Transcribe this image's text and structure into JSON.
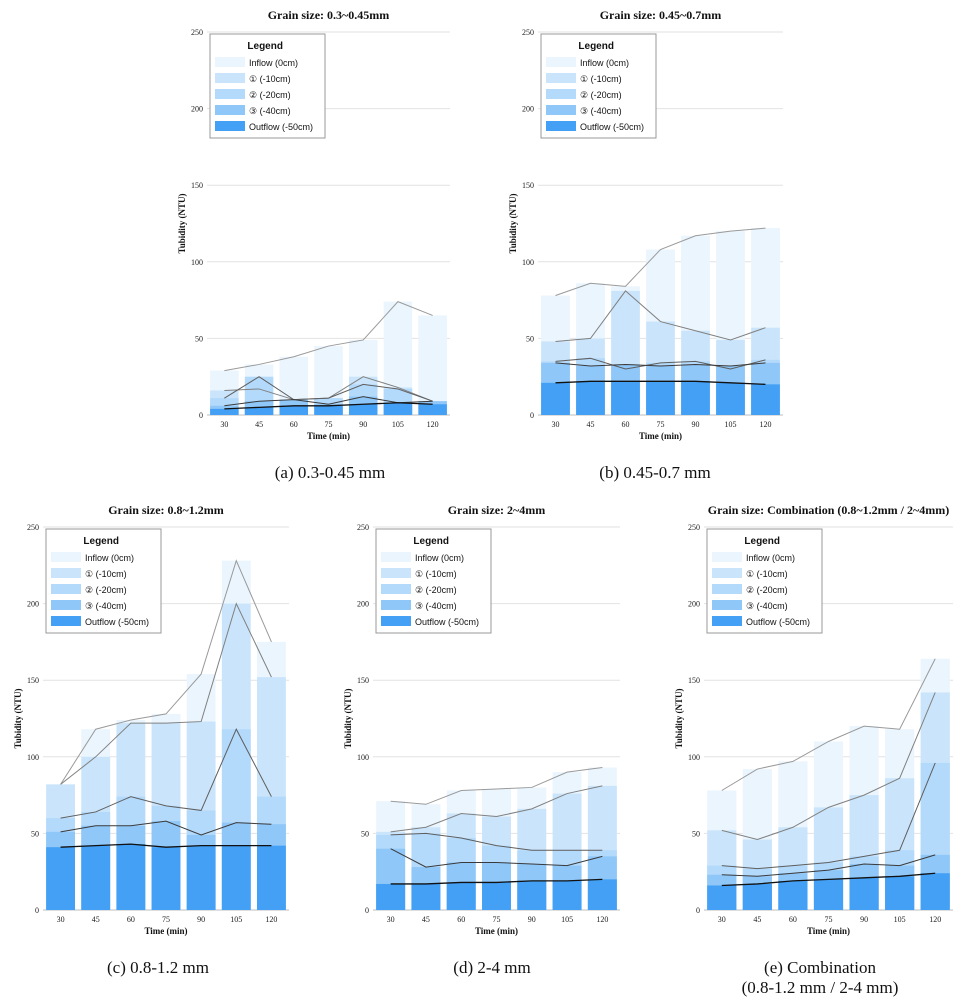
{
  "figure": {
    "colors": {
      "series": [
        "#eaf5fe",
        "#cae5fb",
        "#b3d9fb",
        "#8fc7f8",
        "#43a0f5"
      ],
      "lines": [
        "#9a9a9a",
        "#808080",
        "#5e5e5e",
        "#3a3a3a",
        "#111111"
      ]
    },
    "legend_title": "Legend",
    "series_names": [
      "Inflow (0cm)",
      "① (-10cm)",
      "② (-20cm)",
      "③ (-40cm)",
      "Outflow (-50cm)"
    ]
  },
  "chart_data": [
    {
      "type": "bar",
      "title": "Grain size: 0.3~0.45mm",
      "caption": [
        "(a) 0.3-0.45 mm"
      ],
      "xlabel": "Time (min)",
      "ylabel": "Tubidity (NTU)",
      "ylim": [
        0,
        250
      ],
      "yticks": [
        0,
        50,
        100,
        150,
        200,
        250
      ],
      "categories": [
        "30",
        "45",
        "60",
        "75",
        "90",
        "105",
        "120"
      ],
      "series": [
        {
          "name": "Inflow (0cm)",
          "values": [
            29,
            33,
            38,
            45,
            49,
            74,
            65
          ]
        },
        {
          "name": "① (-10cm)",
          "values": [
            16,
            17,
            10,
            11,
            25,
            18,
            9
          ]
        },
        {
          "name": "② (-20cm)",
          "values": [
            11,
            25,
            10,
            11,
            20,
            17,
            9
          ]
        },
        {
          "name": "③ (-40cm)",
          "values": [
            6,
            9,
            10,
            7,
            12,
            8,
            9
          ]
        },
        {
          "name": "Outflow (-50cm)",
          "values": [
            4,
            5,
            6,
            6,
            7,
            8,
            7
          ]
        }
      ]
    },
    {
      "type": "bar",
      "title": "Grain size: 0.45~0.7mm",
      "caption": [
        "(b) 0.45-0.7 mm"
      ],
      "xlabel": "Time (min)",
      "ylabel": "Tubidity (NTU)",
      "ylim": [
        0,
        250
      ],
      "yticks": [
        0,
        50,
        100,
        150,
        200,
        250
      ],
      "categories": [
        "30",
        "45",
        "60",
        "75",
        "90",
        "105",
        "120"
      ],
      "series": [
        {
          "name": "Inflow (0cm)",
          "values": [
            78,
            86,
            84,
            108,
            117,
            120,
            122
          ]
        },
        {
          "name": "① (-10cm)",
          "values": [
            48,
            50,
            81,
            61,
            55,
            49,
            57
          ]
        },
        {
          "name": "② (-20cm)",
          "values": [
            35,
            37,
            30,
            34,
            35,
            30,
            36
          ]
        },
        {
          "name": "③ (-40cm)",
          "values": [
            34,
            32,
            33,
            32,
            33,
            32,
            34
          ]
        },
        {
          "name": "Outflow (-50cm)",
          "values": [
            21,
            22,
            22,
            22,
            22,
            21,
            20
          ]
        }
      ]
    },
    {
      "type": "bar",
      "title": "Grain size: 0.8~1.2mm",
      "caption": [
        "(c) 0.8-1.2 mm"
      ],
      "xlabel": "Time (min)",
      "ylabel": "Tubidity (NTU)",
      "ylim": [
        0,
        250
      ],
      "yticks": [
        0,
        50,
        100,
        150,
        200,
        250
      ],
      "categories": [
        "30",
        "45",
        "60",
        "75",
        "90",
        "105",
        "120"
      ],
      "series": [
        {
          "name": "Inflow (0cm)",
          "values": [
            82,
            118,
            124,
            128,
            154,
            228,
            175
          ]
        },
        {
          "name": "① (-10cm)",
          "values": [
            82,
            100,
            122,
            122,
            123,
            200,
            152
          ]
        },
        {
          "name": "② (-20cm)",
          "values": [
            60,
            64,
            74,
            68,
            65,
            118,
            74
          ]
        },
        {
          "name": "③ (-40cm)",
          "values": [
            51,
            55,
            55,
            58,
            49,
            57,
            56
          ]
        },
        {
          "name": "Outflow (-50cm)",
          "values": [
            41,
            42,
            43,
            41,
            42,
            42,
            42
          ]
        }
      ]
    },
    {
      "type": "bar",
      "title": "Grain size: 2~4mm",
      "caption": [
        "(d) 2-4 mm"
      ],
      "xlabel": "Time (min)",
      "ylabel": "Tubidity (NTU)",
      "ylim": [
        0,
        250
      ],
      "yticks": [
        0,
        50,
        100,
        150,
        200,
        250
      ],
      "categories": [
        "30",
        "45",
        "60",
        "75",
        "90",
        "105",
        "120"
      ],
      "series": [
        {
          "name": "Inflow (0cm)",
          "values": [
            71,
            69,
            78,
            79,
            80,
            90,
            93
          ]
        },
        {
          "name": "① (-10cm)",
          "values": [
            51,
            54,
            63,
            61,
            66,
            76,
            81
          ]
        },
        {
          "name": "② (-20cm)",
          "values": [
            49,
            50,
            47,
            42,
            39,
            39,
            39
          ]
        },
        {
          "name": "③ (-40cm)",
          "values": [
            40,
            28,
            31,
            31,
            30,
            29,
            35
          ]
        },
        {
          "name": "Outflow (-50cm)",
          "values": [
            17,
            17,
            18,
            18,
            19,
            19,
            20
          ]
        }
      ]
    },
    {
      "type": "bar",
      "title": "Grain size: Combination (0.8~1.2mm / 2~4mm)",
      "caption": [
        "(e) Combination",
        "(0.8-1.2 mm / 2-4 mm)"
      ],
      "xlabel": "Time (min)",
      "ylabel": "Tubidity (NTU)",
      "ylim": [
        0,
        250
      ],
      "yticks": [
        0,
        50,
        100,
        150,
        200,
        250
      ],
      "categories": [
        "30",
        "45",
        "60",
        "75",
        "90",
        "105",
        "120"
      ],
      "series": [
        {
          "name": "Inflow (0cm)",
          "values": [
            78,
            92,
            97,
            110,
            120,
            118,
            164
          ]
        },
        {
          "name": "① (-10cm)",
          "values": [
            52,
            46,
            54,
            67,
            75,
            86,
            142
          ]
        },
        {
          "name": "② (-20cm)",
          "values": [
            29,
            27,
            29,
            31,
            35,
            39,
            96
          ]
        },
        {
          "name": "③ (-40cm)",
          "values": [
            23,
            22,
            24,
            26,
            30,
            29,
            36
          ]
        },
        {
          "name": "Outflow (-50cm)",
          "values": [
            16,
            17,
            19,
            20,
            21,
            22,
            24
          ]
        }
      ]
    }
  ]
}
